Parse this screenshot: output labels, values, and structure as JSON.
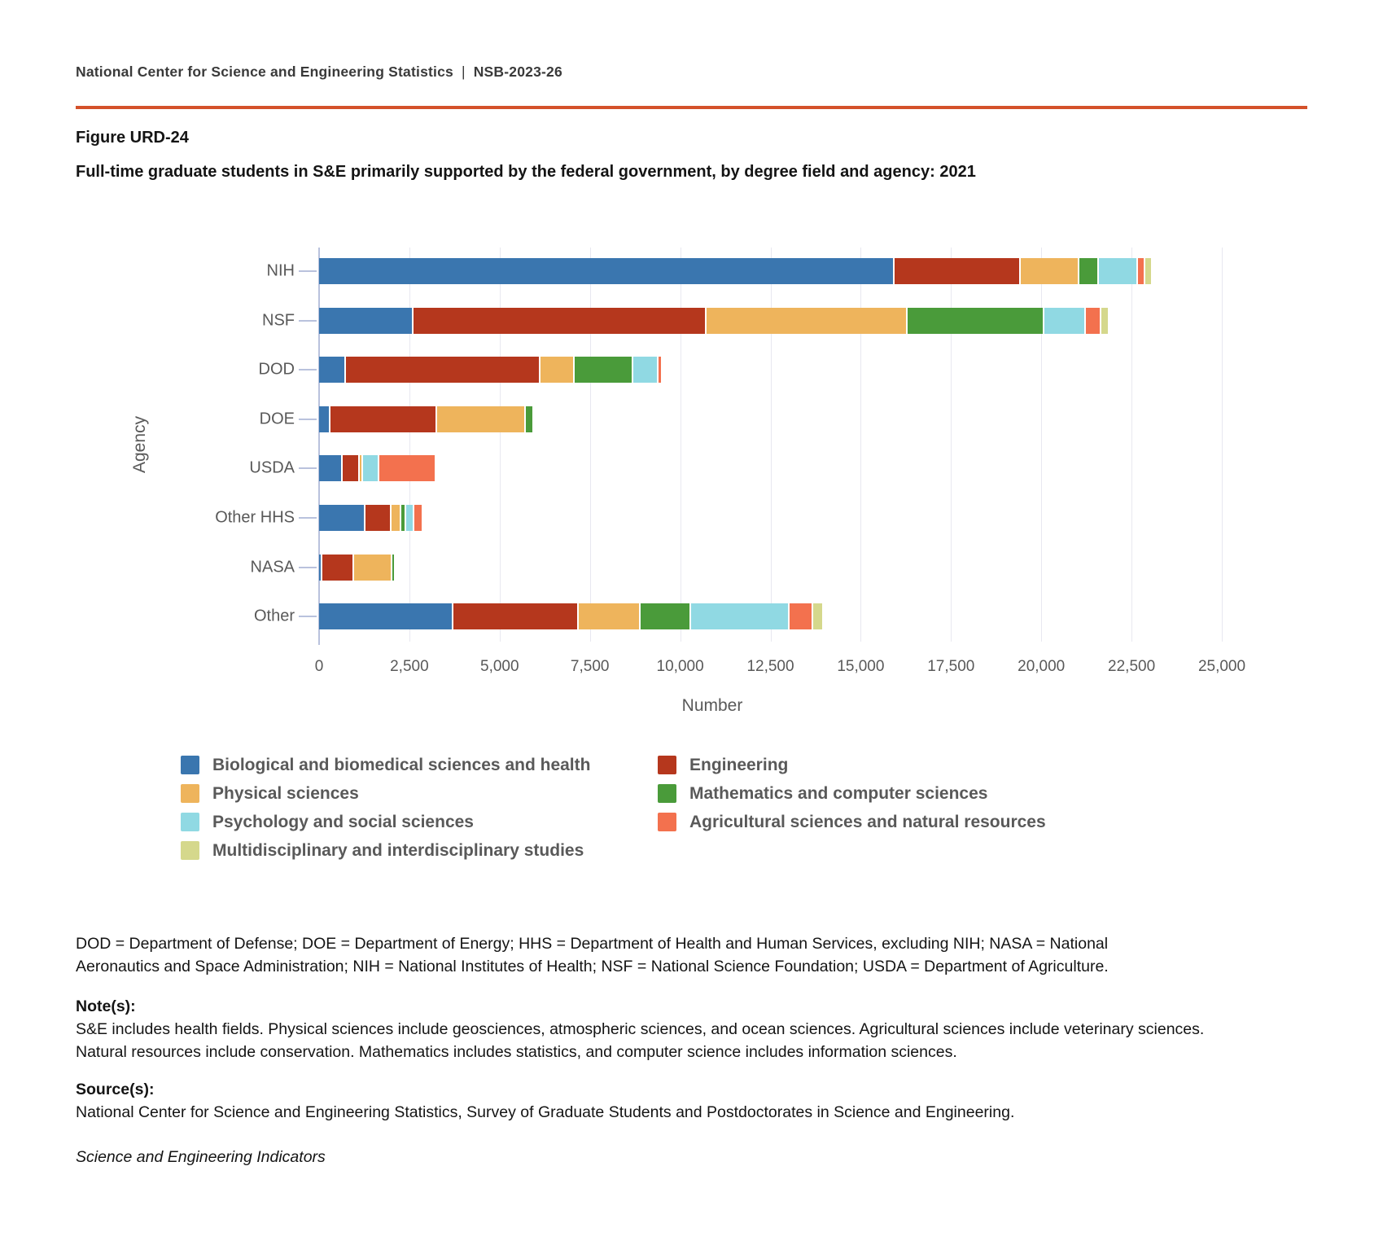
{
  "header": {
    "org": "National Center for Science and Engineering Statistics",
    "separator": "|",
    "report_id": "NSB-2023-26"
  },
  "figure": {
    "label": "Figure URD-24",
    "title": "Full-time graduate students in S&E primarily supported by the federal government, by degree field and agency: 2021"
  },
  "chart_data": {
    "type": "bar",
    "orientation": "horizontal",
    "stacked": true,
    "title": "Full-time graduate students in S&E primarily supported by the federal government, by degree field and agency: 2021",
    "xlabel": "Number",
    "ylabel": "Agency",
    "xlim": [
      0,
      25000
    ],
    "xticks": [
      0,
      2500,
      5000,
      7500,
      10000,
      12500,
      15000,
      17500,
      20000,
      22500,
      25000
    ],
    "xtick_labels": [
      "0",
      "2,500",
      "5,000",
      "7,500",
      "10,000",
      "12,500",
      "15,000",
      "17,500",
      "20,000",
      "22,500",
      "25,000"
    ],
    "grid": true,
    "legend_position": "bottom",
    "categories": [
      "NIH",
      "NSF",
      "DOD",
      "DOE",
      "USDA",
      "Other HHS",
      "NASA",
      "Other"
    ],
    "series": [
      {
        "name": "Biological and biomedical sciences and health",
        "color": "#3A76AF",
        "values": [
          15900,
          2570,
          690,
          260,
          600,
          1230,
          50,
          3670
        ]
      },
      {
        "name": "Engineering",
        "color": "#B5371D",
        "values": [
          3490,
          8120,
          5390,
          2970,
          480,
          730,
          880,
          3470
        ]
      },
      {
        "name": "Physical sciences",
        "color": "#EEB45C",
        "values": [
          1610,
          5570,
          960,
          2450,
          90,
          270,
          1050,
          1730
        ]
      },
      {
        "name": "Mathematics and computer sciences",
        "color": "#4A9B3A",
        "values": [
          560,
          3790,
          1610,
          220,
          0,
          140,
          100,
          1390
        ]
      },
      {
        "name": "Psychology and social sciences",
        "color": "#90D9E3",
        "values": [
          1070,
          1150,
          710,
          0,
          450,
          230,
          0,
          2730
        ]
      },
      {
        "name": "Agricultural sciences and natural resources",
        "color": "#F3714E",
        "values": [
          200,
          420,
          100,
          0,
          1580,
          250,
          0,
          640
        ]
      },
      {
        "name": "Multidisciplinary and interdisciplinary studies",
        "color": "#D5D88C",
        "values": [
          200,
          220,
          0,
          0,
          0,
          0,
          0,
          300
        ]
      }
    ],
    "colors": {
      "divider": "#D4512A",
      "axis_line": "#B9C2DD",
      "gridline": "#E8E8F0",
      "muted_text": "#595959"
    }
  },
  "footnotes": {
    "abbreviations": "DOD = Department of Defense; DOE = Department of Energy; HHS = Department of Health and Human Services, excluding NIH; NASA = National Aeronautics and Space Administration; NIH = National Institutes of Health; NSF = National Science Foundation; USDA = Department of Agriculture.",
    "notes_label": "Note(s):",
    "notes": "S&E includes health fields. Physical sciences include geosciences, atmospheric sciences, and ocean sciences. Agricultural sciences include veterinary sciences. Natural resources include conservation. Mathematics includes statistics, and computer science includes information sciences.",
    "sources_label": "Source(s):",
    "sources": "National Center for Science and Engineering Statistics, Survey of Graduate Students and Postdoctorates in Science and Engineering.",
    "indicators_credit": "Science and Engineering Indicators"
  }
}
